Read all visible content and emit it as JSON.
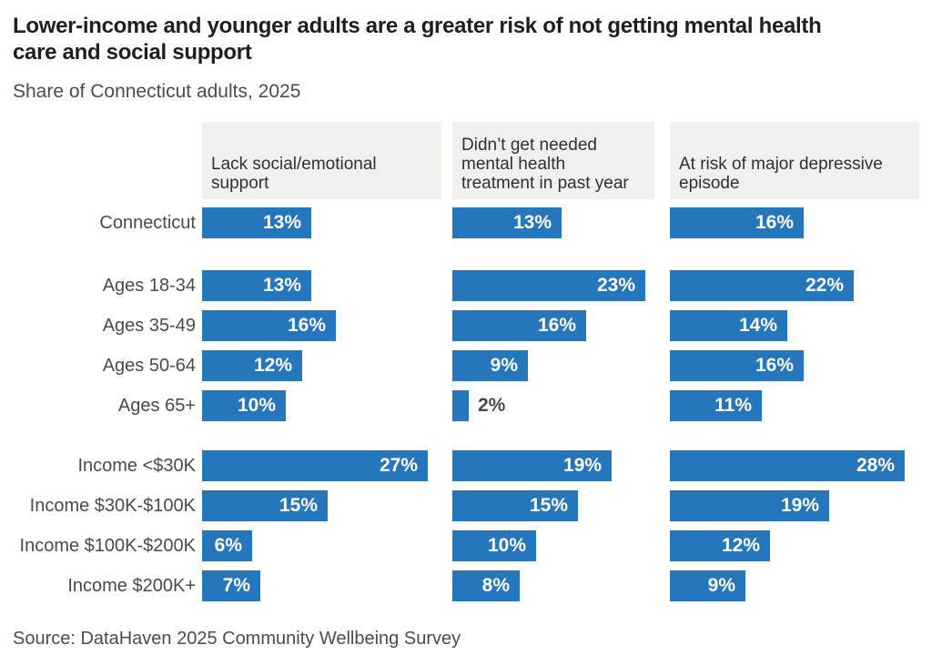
{
  "title_lines": [
    "Lower-income and younger adults are a greater risk of not getting mental health",
    "care and social support"
  ],
  "subtitle": "Share of Connecticut adults, 2025",
  "source": "Source: DataHaven 2025 Community Wellbeing Survey",
  "colors": {
    "bar": "#2576BB",
    "header_bg": "#F0F0EE",
    "title_text": "#1F1F1F",
    "body_text": "#4A4A4A",
    "header_text": "#303030",
    "value_label_inside": "#FFFFFF",
    "value_label_outside": "#4A4A4A",
    "background": "#FFFFFF"
  },
  "chart_data": {
    "type": "bar",
    "orientation": "horizontal",
    "title": "Lower-income and younger adults are a greater risk of not getting mental health care and social support",
    "subtitle": "Share of Connecticut adults, 2025",
    "unit": "%",
    "label_format": "{value}%",
    "xlim": [
      0,
      30
    ],
    "grid": false,
    "legend": "none",
    "categories": [
      "Connecticut",
      "Ages 18-34",
      "Ages 35-49",
      "Ages 50-64",
      "Ages 65+",
      "Income <$30K",
      "Income $30K-$100K",
      "Income $100K-$200K",
      "Income $200K+"
    ],
    "category_groups": [
      [
        0
      ],
      [
        1,
        2,
        3,
        4
      ],
      [
        5,
        6,
        7,
        8
      ]
    ],
    "series": [
      {
        "name": "Lack social/emotional support",
        "header_lines": [
          "Lack social/emotional",
          "support"
        ],
        "values": [
          13,
          13,
          16,
          12,
          10,
          27,
          15,
          6,
          7
        ]
      },
      {
        "name": "Didn’t get needed mental health treatment in past year",
        "header_lines": [
          "Didn’t get needed",
          "mental health",
          "treatment in past year"
        ],
        "values": [
          13,
          23,
          16,
          9,
          2,
          19,
          15,
          10,
          8
        ]
      },
      {
        "name": "At risk of major depressive episode",
        "header_lines": [
          "At risk of major depressive",
          "episode"
        ],
        "values": [
          16,
          22,
          14,
          16,
          11,
          28,
          19,
          12,
          9
        ]
      }
    ],
    "source": "Source: DataHaven 2025 Community Wellbeing Survey"
  }
}
